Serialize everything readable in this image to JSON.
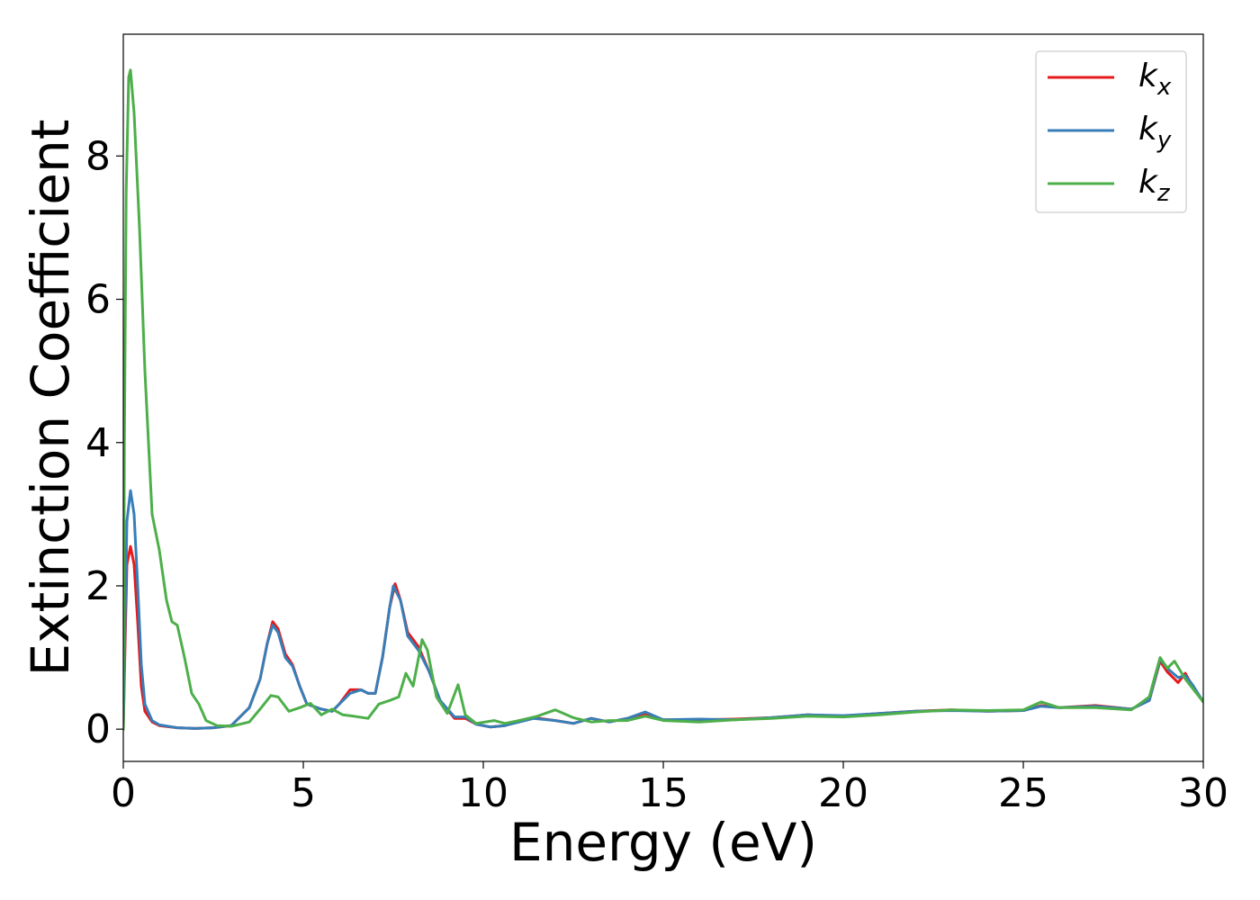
{
  "chart_data": {
    "type": "line",
    "title": "",
    "xlabel": "Energy (eV)",
    "ylabel": "Extinction Coefficient",
    "xlim": [
      0,
      30
    ],
    "ylim": [
      -0.45,
      9.7
    ],
    "xticks": [
      0,
      5,
      10,
      15,
      20,
      25,
      30
    ],
    "yticks": [
      0,
      2,
      4,
      6,
      8
    ],
    "grid": false,
    "legend_position": "top-right",
    "series": [
      {
        "name": "k",
        "sub": "x",
        "color": "#e41a1c",
        "points": [
          [
            0,
            0
          ],
          [
            0.05,
            1.2
          ],
          [
            0.1,
            2.3
          ],
          [
            0.2,
            2.55
          ],
          [
            0.3,
            2.3
          ],
          [
            0.4,
            1.5
          ],
          [
            0.5,
            0.6
          ],
          [
            0.6,
            0.25
          ],
          [
            0.8,
            0.1
          ],
          [
            1,
            0.05
          ],
          [
            1.5,
            0.02
          ],
          [
            2,
            0.01
          ],
          [
            2.5,
            0.02
          ],
          [
            3,
            0.05
          ],
          [
            3.5,
            0.3
          ],
          [
            3.8,
            0.7
          ],
          [
            4,
            1.2
          ],
          [
            4.15,
            1.5
          ],
          [
            4.3,
            1.4
          ],
          [
            4.5,
            1.05
          ],
          [
            4.7,
            0.9
          ],
          [
            4.9,
            0.6
          ],
          [
            5.1,
            0.35
          ],
          [
            5.5,
            0.28
          ],
          [
            5.8,
            0.25
          ],
          [
            6,
            0.35
          ],
          [
            6.3,
            0.55
          ],
          [
            6.6,
            0.55
          ],
          [
            6.8,
            0.5
          ],
          [
            7,
            0.5
          ],
          [
            7.2,
            1.0
          ],
          [
            7.4,
            1.7
          ],
          [
            7.55,
            2.03
          ],
          [
            7.7,
            1.8
          ],
          [
            7.9,
            1.35
          ],
          [
            8.2,
            1.15
          ],
          [
            8.5,
            0.8
          ],
          [
            8.8,
            0.4
          ],
          [
            9.2,
            0.15
          ],
          [
            9.5,
            0.15
          ],
          [
            9.8,
            0.07
          ],
          [
            10.2,
            0.03
          ],
          [
            10.6,
            0.05
          ],
          [
            11,
            0.12
          ],
          [
            11.4,
            0.16
          ],
          [
            12,
            0.12
          ],
          [
            12.5,
            0.08
          ],
          [
            13,
            0.15
          ],
          [
            13.5,
            0.1
          ],
          [
            14,
            0.15
          ],
          [
            14.5,
            0.22
          ],
          [
            15,
            0.13
          ],
          [
            16,
            0.13
          ],
          [
            17,
            0.14
          ],
          [
            18,
            0.16
          ],
          [
            19,
            0.2
          ],
          [
            20,
            0.18
          ],
          [
            21,
            0.22
          ],
          [
            22,
            0.25
          ],
          [
            23,
            0.27
          ],
          [
            24,
            0.25
          ],
          [
            25,
            0.26
          ],
          [
            25.5,
            0.33
          ],
          [
            26,
            0.3
          ],
          [
            27,
            0.33
          ],
          [
            28,
            0.28
          ],
          [
            28.5,
            0.4
          ],
          [
            28.8,
            0.95
          ],
          [
            29,
            0.8
          ],
          [
            29.3,
            0.65
          ],
          [
            29.5,
            0.78
          ],
          [
            29.7,
            0.6
          ],
          [
            30,
            0.38
          ]
        ]
      },
      {
        "name": "k",
        "sub": "y",
        "color": "#377eb8",
        "points": [
          [
            0,
            0
          ],
          [
            0.05,
            1.5
          ],
          [
            0.1,
            2.9
          ],
          [
            0.2,
            3.33
          ],
          [
            0.3,
            3.0
          ],
          [
            0.4,
            2.0
          ],
          [
            0.5,
            0.9
          ],
          [
            0.6,
            0.35
          ],
          [
            0.8,
            0.12
          ],
          [
            1,
            0.06
          ],
          [
            1.5,
            0.02
          ],
          [
            2,
            0.01
          ],
          [
            2.5,
            0.02
          ],
          [
            3,
            0.05
          ],
          [
            3.5,
            0.3
          ],
          [
            3.8,
            0.7
          ],
          [
            4,
            1.2
          ],
          [
            4.15,
            1.45
          ],
          [
            4.3,
            1.35
          ],
          [
            4.5,
            1.0
          ],
          [
            4.7,
            0.88
          ],
          [
            4.9,
            0.6
          ],
          [
            5.1,
            0.35
          ],
          [
            5.5,
            0.28
          ],
          [
            5.8,
            0.25
          ],
          [
            6,
            0.35
          ],
          [
            6.3,
            0.5
          ],
          [
            6.6,
            0.55
          ],
          [
            6.8,
            0.5
          ],
          [
            7,
            0.5
          ],
          [
            7.2,
            1.0
          ],
          [
            7.4,
            1.7
          ],
          [
            7.5,
            2.0
          ],
          [
            7.7,
            1.8
          ],
          [
            7.9,
            1.3
          ],
          [
            8.2,
            1.1
          ],
          [
            8.5,
            0.8
          ],
          [
            8.8,
            0.4
          ],
          [
            9.2,
            0.17
          ],
          [
            9.5,
            0.17
          ],
          [
            9.8,
            0.07
          ],
          [
            10.2,
            0.03
          ],
          [
            10.6,
            0.05
          ],
          [
            11,
            0.1
          ],
          [
            11.4,
            0.15
          ],
          [
            12,
            0.12
          ],
          [
            12.5,
            0.08
          ],
          [
            13,
            0.15
          ],
          [
            13.5,
            0.1
          ],
          [
            14,
            0.15
          ],
          [
            14.5,
            0.24
          ],
          [
            15,
            0.13
          ],
          [
            16,
            0.14
          ],
          [
            17,
            0.13
          ],
          [
            18,
            0.16
          ],
          [
            19,
            0.2
          ],
          [
            20,
            0.19
          ],
          [
            21,
            0.22
          ],
          [
            22,
            0.25
          ],
          [
            23,
            0.26
          ],
          [
            24,
            0.25
          ],
          [
            25,
            0.26
          ],
          [
            25.5,
            0.32
          ],
          [
            26,
            0.3
          ],
          [
            27,
            0.32
          ],
          [
            28,
            0.28
          ],
          [
            28.5,
            0.4
          ],
          [
            28.8,
            0.98
          ],
          [
            29,
            0.85
          ],
          [
            29.3,
            0.72
          ],
          [
            29.5,
            0.75
          ],
          [
            29.7,
            0.62
          ],
          [
            30,
            0.38
          ]
        ]
      },
      {
        "name": "k",
        "sub": "z",
        "color": "#4daf4a",
        "points": [
          [
            0,
            0
          ],
          [
            0.03,
            4.0
          ],
          [
            0.08,
            7.5
          ],
          [
            0.15,
            9.1
          ],
          [
            0.2,
            9.2
          ],
          [
            0.3,
            8.6
          ],
          [
            0.45,
            7.0
          ],
          [
            0.6,
            5.0
          ],
          [
            0.8,
            3.0
          ],
          [
            1,
            2.5
          ],
          [
            1.2,
            1.8
          ],
          [
            1.35,
            1.5
          ],
          [
            1.5,
            1.45
          ],
          [
            1.7,
            1.0
          ],
          [
            1.9,
            0.5
          ],
          [
            2.1,
            0.35
          ],
          [
            2.3,
            0.12
          ],
          [
            2.6,
            0.05
          ],
          [
            3,
            0.04
          ],
          [
            3.5,
            0.1
          ],
          [
            3.8,
            0.28
          ],
          [
            4.1,
            0.47
          ],
          [
            4.3,
            0.45
          ],
          [
            4.6,
            0.25
          ],
          [
            4.9,
            0.3
          ],
          [
            5.2,
            0.36
          ],
          [
            5.5,
            0.2
          ],
          [
            5.8,
            0.28
          ],
          [
            6.1,
            0.2
          ],
          [
            6.4,
            0.18
          ],
          [
            6.8,
            0.15
          ],
          [
            7.1,
            0.35
          ],
          [
            7.4,
            0.4
          ],
          [
            7.65,
            0.45
          ],
          [
            7.85,
            0.78
          ],
          [
            8.05,
            0.6
          ],
          [
            8.3,
            1.25
          ],
          [
            8.45,
            1.1
          ],
          [
            8.7,
            0.45
          ],
          [
            9,
            0.22
          ],
          [
            9.3,
            0.62
          ],
          [
            9.5,
            0.2
          ],
          [
            9.8,
            0.08
          ],
          [
            10.3,
            0.12
          ],
          [
            10.6,
            0.08
          ],
          [
            11,
            0.12
          ],
          [
            11.5,
            0.18
          ],
          [
            12,
            0.27
          ],
          [
            12.5,
            0.16
          ],
          [
            13,
            0.1
          ],
          [
            13.5,
            0.12
          ],
          [
            14,
            0.12
          ],
          [
            14.5,
            0.18
          ],
          [
            15,
            0.12
          ],
          [
            16,
            0.1
          ],
          [
            17,
            0.13
          ],
          [
            18,
            0.15
          ],
          [
            19,
            0.18
          ],
          [
            20,
            0.17
          ],
          [
            21,
            0.2
          ],
          [
            22,
            0.24
          ],
          [
            23,
            0.27
          ],
          [
            24,
            0.26
          ],
          [
            25,
            0.27
          ],
          [
            25.5,
            0.38
          ],
          [
            26,
            0.3
          ],
          [
            27,
            0.3
          ],
          [
            28,
            0.27
          ],
          [
            28.5,
            0.45
          ],
          [
            28.8,
            1.0
          ],
          [
            29,
            0.85
          ],
          [
            29.2,
            0.95
          ],
          [
            29.5,
            0.7
          ],
          [
            30,
            0.38
          ]
        ]
      }
    ]
  }
}
